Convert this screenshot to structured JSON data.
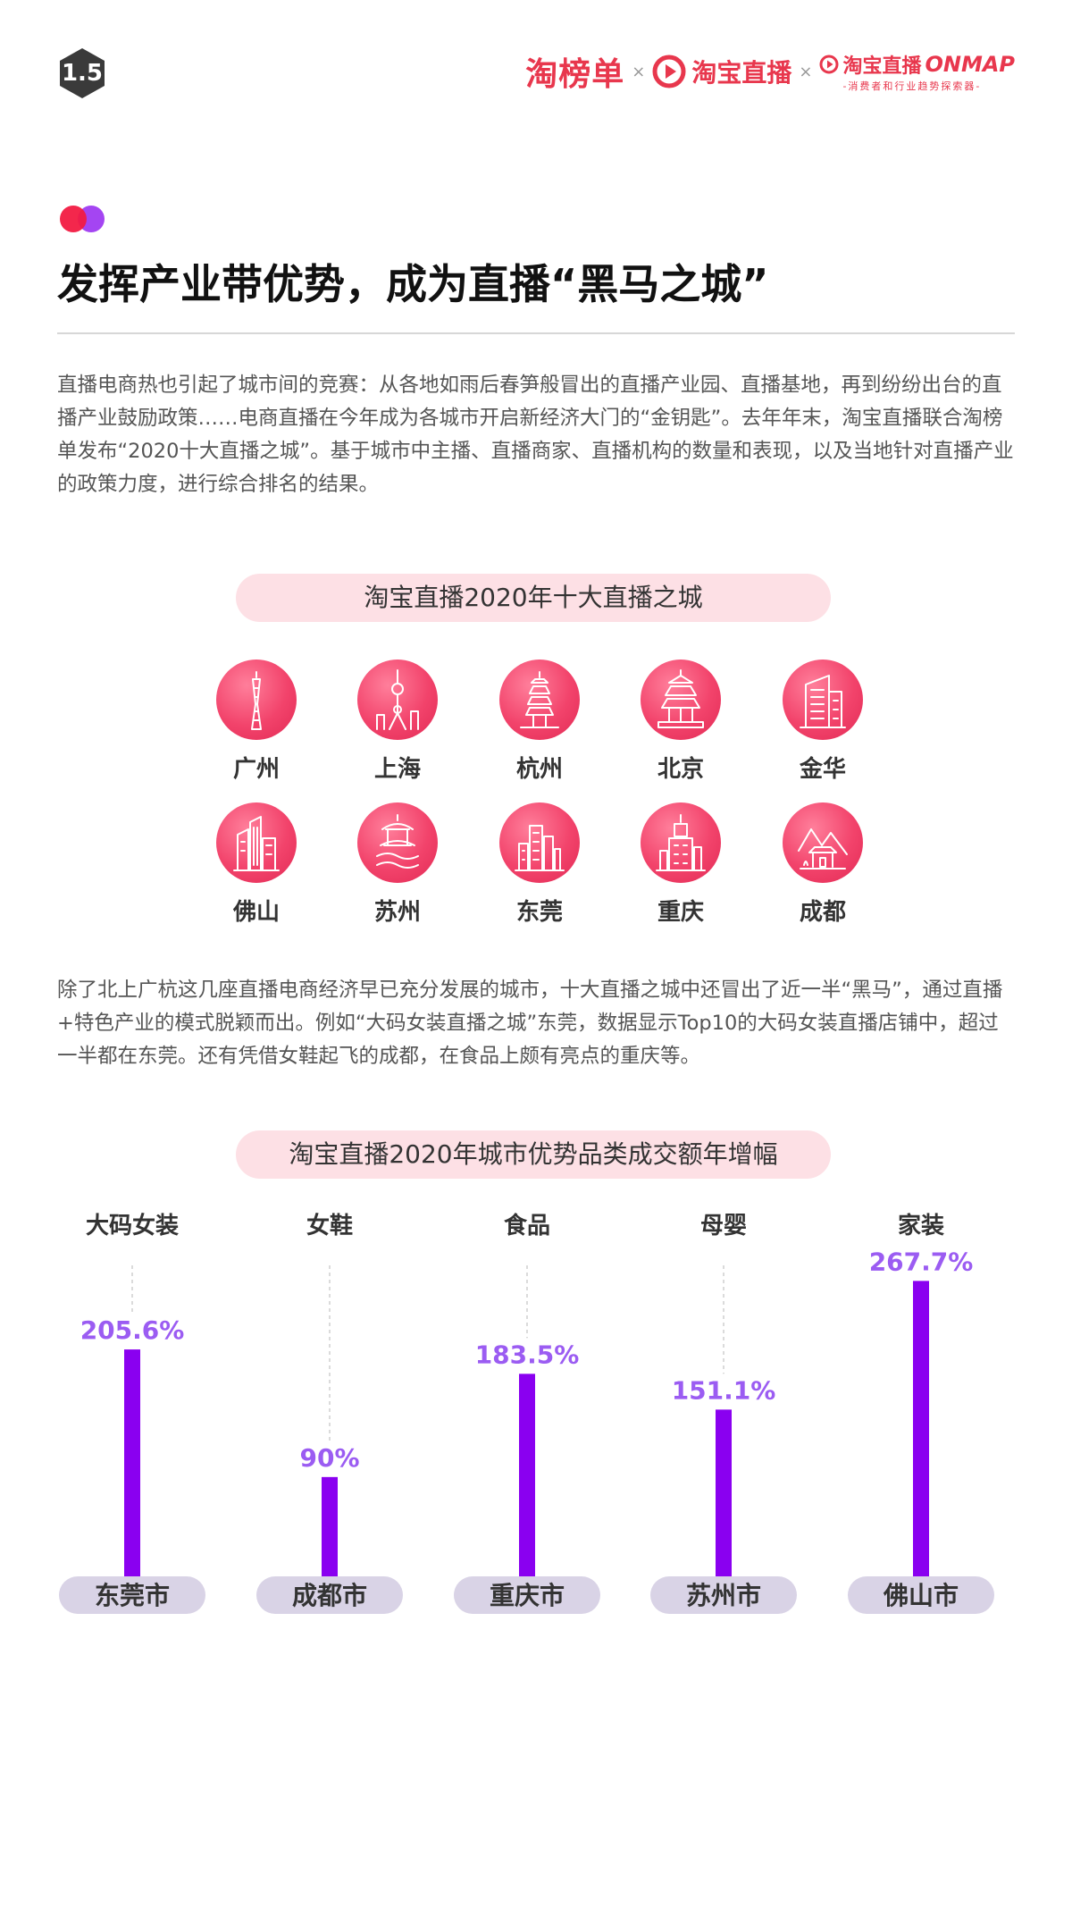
{
  "header": {
    "page_number": "1.5",
    "logo_taobangdan": "淘榜单",
    "separator": "×",
    "logo_taobao_live": "淘宝直播",
    "logo_onmap_prefix": "淘宝直播",
    "logo_onmap_suffix": "ONMAP",
    "logo_onmap_sub": "-消费者和行业趋势探索器-"
  },
  "title": "发挥产业带优势，成为直播“黑马之城”",
  "intro_paragraph": "直播电商热也引起了城市间的竞赛：从各地如雨后春笋般冒出的直播产业园、直播基地，再到纷纷出台的直播产业鼓励政策……电商直播在今年成为各城市开启新经济大门的“金钥匙”。去年年末，淘宝直播联合淘榜单发布“2020十大直播之城”。基于城市中主播、直播商家、直播机构的数量和表现，以及当地针对直播产业的政策力度，进行综合排名的结果。",
  "cities_section": {
    "title": "淘宝直播2020年十大直播之城",
    "cities": [
      {
        "name": "广州",
        "icon": "canton-tower-icon"
      },
      {
        "name": "上海",
        "icon": "oriental-pearl-tower-icon"
      },
      {
        "name": "杭州",
        "icon": "pagoda-icon"
      },
      {
        "name": "北京",
        "icon": "temple-of-heaven-icon"
      },
      {
        "name": "金华",
        "icon": "office-building-icon"
      },
      {
        "name": "佛山",
        "icon": "skyscrapers-icon"
      },
      {
        "name": "苏州",
        "icon": "garden-pavilion-icon"
      },
      {
        "name": "东莞",
        "icon": "city-skyline-icon"
      },
      {
        "name": "重庆",
        "icon": "tower-building-icon"
      },
      {
        "name": "成都",
        "icon": "mountain-temple-icon"
      }
    ]
  },
  "second_paragraph": "除了北上广杭这几座直播电商经济早已充分发展的城市，十大直播之城中还冒出了近一半“黑马”，通过直播+特色产业的模式脱颖而出。例如“大码女装直播之城”东莞，数据显示Top10的大码女装直播店铺中，超过一半都在东莞。还有凭借女鞋起飞的成都，在食品上颇有亮点的重庆等。",
  "chart_data": {
    "type": "bar",
    "title": "淘宝直播2020年城市优势品类成交额年增幅",
    "categories": [
      "东莞市",
      "成都市",
      "重庆市",
      "苏州市",
      "佛山市"
    ],
    "product_categories": [
      "大码女装",
      "女鞋",
      "食品",
      "母婴",
      "家装"
    ],
    "values": [
      205.6,
      90,
      183.5,
      151.1,
      267.7
    ],
    "value_labels": [
      "205.6%",
      "90%",
      "183.5%",
      "151.1%",
      "267.7%"
    ],
    "unit": "%",
    "ylim": [
      0,
      300
    ],
    "grid": false,
    "bar_color": "#8a00f0",
    "value_label_color": "#9b5cf2",
    "city_pill_color": "#d9d3e6"
  },
  "colors": {
    "accent_red": "#e8374d",
    "pill_pink": "#fde0e5",
    "dot_red": "#f21b42",
    "dot_purple": "#a445f2"
  }
}
